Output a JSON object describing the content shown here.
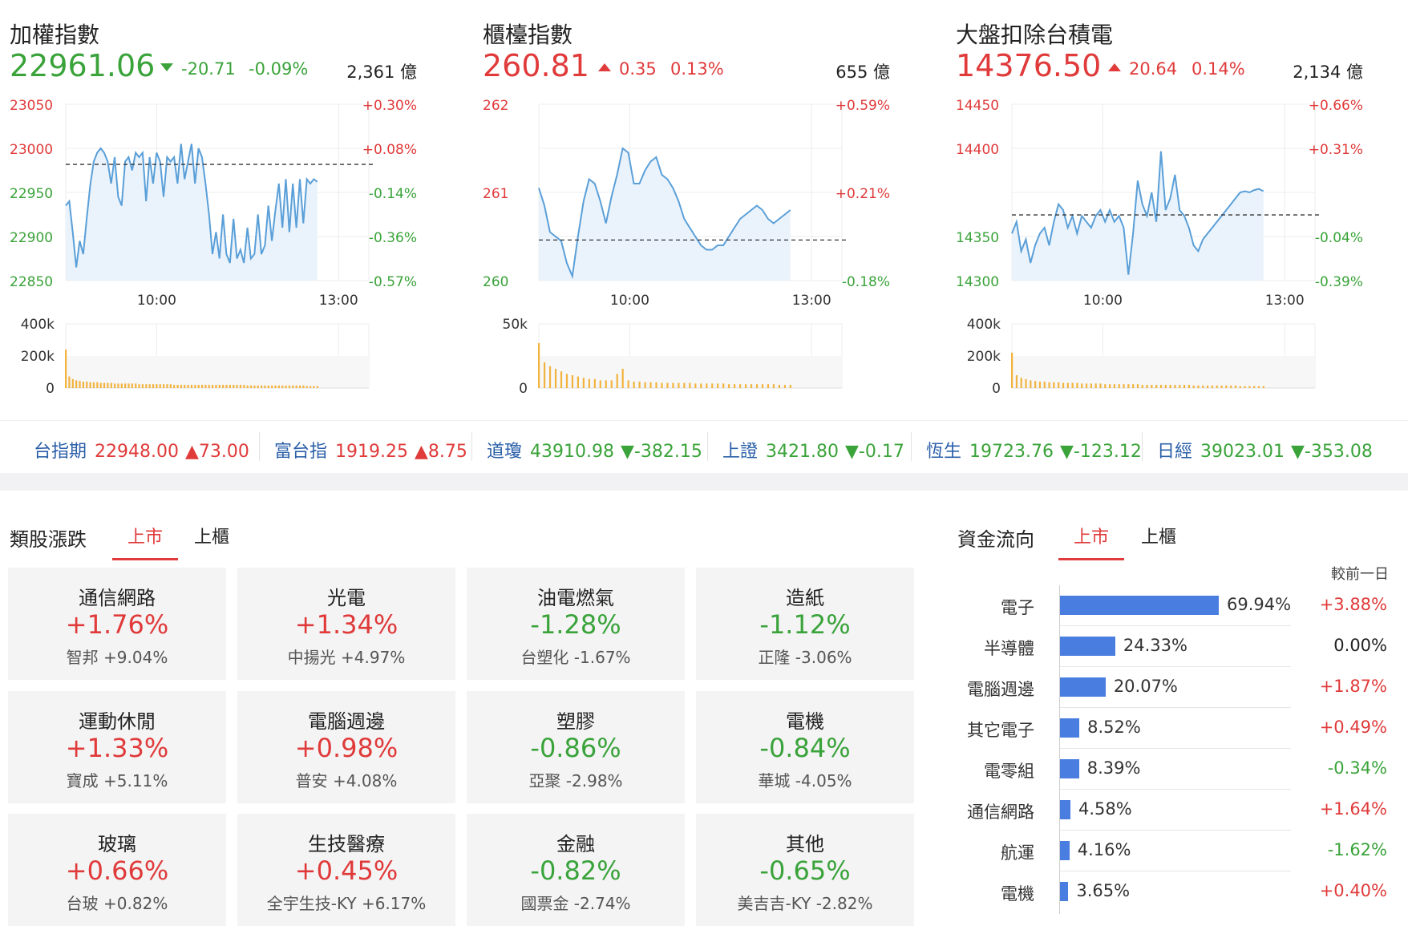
{
  "colors": {
    "up": "#e03a3a",
    "down": "#3aa33a",
    "line": "#5a9fd8",
    "fill": "#eaf3fb",
    "volume": "#f2b33d",
    "bar": "#4a7de0"
  },
  "panels": [
    {
      "title": "加權指數",
      "price": "22961.06",
      "direction": "down",
      "change": "-20.71",
      "change_pct": "-0.09%",
      "volume": "2,361 億",
      "left_ticks": [
        "23050",
        "23000",
        "22950",
        "22900",
        "22850"
      ],
      "right_ticks": [
        "+0.30%",
        "+0.08%",
        "-0.14%",
        "-0.36%",
        "-0.57%"
      ],
      "left_tick_dirs": [
        "up",
        "up",
        "down",
        "down",
        "down"
      ],
      "right_tick_dirs": [
        "up",
        "up",
        "down",
        "down",
        "down"
      ],
      "time_ticks": [
        "10:00",
        "13:00"
      ],
      "vol_ticks": [
        "400k",
        "200k",
        "0"
      ],
      "ymin": 22850,
      "ymax": 23050,
      "ref": 22981.77,
      "series": [
        22935,
        22940,
        22905,
        22865,
        22895,
        22880,
        22920,
        22958,
        22985,
        22995,
        23000,
        22995,
        22985,
        22960,
        22990,
        22945,
        22935,
        22985,
        22990,
        22975,
        22995,
        22990,
        22995,
        22940,
        22990,
        22960,
        22995,
        22985,
        22945,
        22990,
        22985,
        22990,
        22960,
        23005,
        22965,
        22985,
        23005,
        22960,
        23000,
        22990,
        22960,
        22925,
        22880,
        22905,
        22875,
        22925,
        22880,
        22870,
        22920,
        22875,
        22885,
        22870,
        22910,
        22875,
        22880,
        22925,
        22880,
        22890,
        22935,
        22895,
        22930,
        22960,
        22910,
        22965,
        22905,
        22960,
        22910,
        22965,
        22915,
        22965,
        22960,
        22965,
        22962
      ],
      "volume_series": [
        60,
        18,
        14,
        12,
        11,
        10,
        10,
        9,
        9,
        9,
        8,
        8,
        8,
        8,
        7,
        7,
        7,
        7,
        7,
        7,
        7,
        6,
        6,
        6,
        6,
        6,
        6,
        6,
        6,
        6,
        6,
        5,
        5,
        5,
        5,
        5,
        5,
        5,
        5,
        5,
        5,
        5,
        5,
        5,
        5,
        5,
        5,
        5,
        5,
        5,
        5,
        5,
        4,
        4,
        4,
        4,
        4,
        4,
        4,
        4,
        4,
        4,
        4,
        4,
        4,
        4,
        4,
        4,
        4,
        3,
        3,
        3,
        3
      ]
    },
    {
      "title": "櫃檯指數",
      "price": "260.81",
      "direction": "up",
      "change": "0.35",
      "change_pct": "0.13%",
      "volume": "655 億",
      "left_ticks": [
        "262",
        "",
        "261",
        "",
        "260"
      ],
      "right_ticks": [
        "+0.59%",
        "",
        "+0.21%",
        "",
        "-0.18%"
      ],
      "left_tick_dirs": [
        "up",
        "up",
        "up",
        "up",
        "down"
      ],
      "right_tick_dirs": [
        "up",
        "up",
        "up",
        "up",
        "down"
      ],
      "time_ticks": [
        "10:00",
        "13:00"
      ],
      "vol_ticks": [
        "50k",
        "",
        "0"
      ],
      "ymin": 260,
      "ymax": 262,
      "ref": 260.46,
      "series": [
        261.05,
        260.85,
        260.55,
        260.5,
        260.45,
        260.2,
        260.05,
        260.5,
        260.9,
        261.15,
        261.1,
        260.9,
        260.65,
        260.95,
        261.2,
        261.5,
        261.45,
        261.1,
        261.1,
        261.25,
        261.35,
        261.4,
        261.2,
        261.15,
        261.05,
        260.9,
        260.7,
        260.6,
        260.5,
        260.4,
        260.35,
        260.35,
        260.4,
        260.4,
        260.5,
        260.6,
        260.7,
        260.75,
        260.8,
        260.85,
        260.8,
        260.7,
        260.65,
        260.7,
        260.75,
        260.8
      ],
      "volume_series": [
        70,
        40,
        34,
        30,
        26,
        22,
        20,
        18,
        16,
        14,
        14,
        12,
        12,
        12,
        22,
        30,
        12,
        10,
        10,
        9,
        9,
        9,
        8,
        8,
        8,
        8,
        8,
        8,
        7,
        7,
        7,
        7,
        7,
        7,
        6,
        6,
        6,
        6,
        6,
        6,
        6,
        6,
        6,
        5,
        5,
        5
      ]
    },
    {
      "title": "大盤扣除台積電",
      "price": "14376.50",
      "direction": "up",
      "change": "20.64",
      "change_pct": "0.14%",
      "volume": "2,134 億",
      "left_ticks": [
        "14450",
        "14400",
        "",
        "14350",
        "14300"
      ],
      "right_ticks": [
        "+0.66%",
        "+0.31%",
        "",
        "-0.04%",
        "-0.39%"
      ],
      "left_tick_dirs": [
        "up",
        "up",
        "up",
        "down",
        "down"
      ],
      "right_tick_dirs": [
        "up",
        "up",
        "up",
        "down",
        "down"
      ],
      "time_ticks": [
        "10:00",
        "13:00"
      ],
      "vol_ticks": [
        "400k",
        "200k",
        "0"
      ],
      "ymin": 14300,
      "ymax": 14450,
      "ref": 14355.86,
      "series": [
        14340,
        14350,
        14325,
        14335,
        14315,
        14330,
        14340,
        14345,
        14330,
        14350,
        14365,
        14360,
        14345,
        14355,
        14340,
        14355,
        14350,
        14345,
        14355,
        14360,
        14350,
        14360,
        14350,
        14355,
        14345,
        14305,
        14340,
        14385,
        14365,
        14355,
        14375,
        14350,
        14410,
        14360,
        14370,
        14390,
        14360,
        14355,
        14345,
        14330,
        14325,
        14335,
        14340,
        14345,
        14350,
        14355,
        14360,
        14365,
        14370,
        14375,
        14376,
        14375,
        14377,
        14378,
        14376
      ],
      "volume_series": [
        55,
        20,
        16,
        14,
        12,
        11,
        10,
        10,
        9,
        9,
        9,
        8,
        8,
        8,
        8,
        7,
        7,
        7,
        7,
        7,
        6,
        6,
        6,
        6,
        6,
        6,
        6,
        6,
        5,
        5,
        5,
        5,
        5,
        5,
        5,
        5,
        5,
        5,
        5,
        4,
        4,
        4,
        4,
        4,
        4,
        4,
        4,
        4,
        4,
        3,
        3,
        3,
        3,
        3,
        3
      ]
    }
  ],
  "strip": [
    {
      "name": "台指期",
      "value": "22948.00",
      "change": "▲73.00",
      "dir": "up"
    },
    {
      "name": "富台指",
      "value": "1919.25",
      "change": "▲8.75",
      "dir": "up"
    },
    {
      "name": "道瓊",
      "value": "43910.98",
      "change": "▼-382.15",
      "dir": "down"
    },
    {
      "name": "上證",
      "value": "3421.80",
      "change": "▼-0.17",
      "dir": "down"
    },
    {
      "name": "恆生",
      "value": "19723.76",
      "change": "▼-123.12",
      "dir": "down"
    },
    {
      "name": "日經",
      "value": "39023.01",
      "change": "▼-353.08",
      "dir": "down"
    }
  ],
  "sectors": {
    "title": "類股漲跌",
    "tabs": [
      "上市",
      "上櫃"
    ],
    "cards": [
      {
        "name": "通信網路",
        "pct": "+1.76%",
        "dir": "up",
        "sub": "智邦  +9.04%"
      },
      {
        "name": "光電",
        "pct": "+1.34%",
        "dir": "up",
        "sub": "中揚光  +4.97%"
      },
      {
        "name": "油電燃氣",
        "pct": "-1.28%",
        "dir": "down",
        "sub": "台塑化  -1.67%"
      },
      {
        "name": "造紙",
        "pct": "-1.12%",
        "dir": "down",
        "sub": "正隆  -3.06%"
      },
      {
        "name": "運動休閒",
        "pct": "+1.33%",
        "dir": "up",
        "sub": "寶成  +5.11%"
      },
      {
        "name": "電腦週邊",
        "pct": "+0.98%",
        "dir": "up",
        "sub": "普安  +4.08%"
      },
      {
        "name": "塑膠",
        "pct": "-0.86%",
        "dir": "down",
        "sub": "亞聚  -2.98%"
      },
      {
        "name": "電機",
        "pct": "-0.84%",
        "dir": "down",
        "sub": "華城  -4.05%"
      },
      {
        "name": "玻璃",
        "pct": "+0.66%",
        "dir": "up",
        "sub": "台玻  +0.82%"
      },
      {
        "name": "生技醫療",
        "pct": "+0.45%",
        "dir": "up",
        "sub": "全宇生技-KY  +6.17%"
      },
      {
        "name": "金融",
        "pct": "-0.82%",
        "dir": "down",
        "sub": "國票金  -2.74%"
      },
      {
        "name": "其他",
        "pct": "-0.65%",
        "dir": "down",
        "sub": "美吉吉-KY  -2.82%"
      }
    ]
  },
  "fund_flow": {
    "title": "資金流向",
    "tabs": [
      "上市",
      "上櫃"
    ],
    "note": "較前一日",
    "rows": [
      {
        "label": "電子",
        "value": 69.94,
        "value_text": "69.94%",
        "change": "+3.88%",
        "dir": "up"
      },
      {
        "label": "半導體",
        "value": 24.33,
        "value_text": "24.33%",
        "change": "0.00%",
        "dir": "flat"
      },
      {
        "label": "電腦週邊",
        "value": 20.07,
        "value_text": "20.07%",
        "change": "+1.87%",
        "dir": "up"
      },
      {
        "label": "其它電子",
        "value": 8.52,
        "value_text": "8.52%",
        "change": "+0.49%",
        "dir": "up"
      },
      {
        "label": "電零組",
        "value": 8.39,
        "value_text": "8.39%",
        "change": "-0.34%",
        "dir": "down"
      },
      {
        "label": "通信網路",
        "value": 4.58,
        "value_text": "4.58%",
        "change": "+1.64%",
        "dir": "up"
      },
      {
        "label": "航運",
        "value": 4.16,
        "value_text": "4.16%",
        "change": "-1.62%",
        "dir": "down"
      },
      {
        "label": "電機",
        "value": 3.65,
        "value_text": "3.65%",
        "change": "+0.40%",
        "dir": "up"
      }
    ]
  }
}
